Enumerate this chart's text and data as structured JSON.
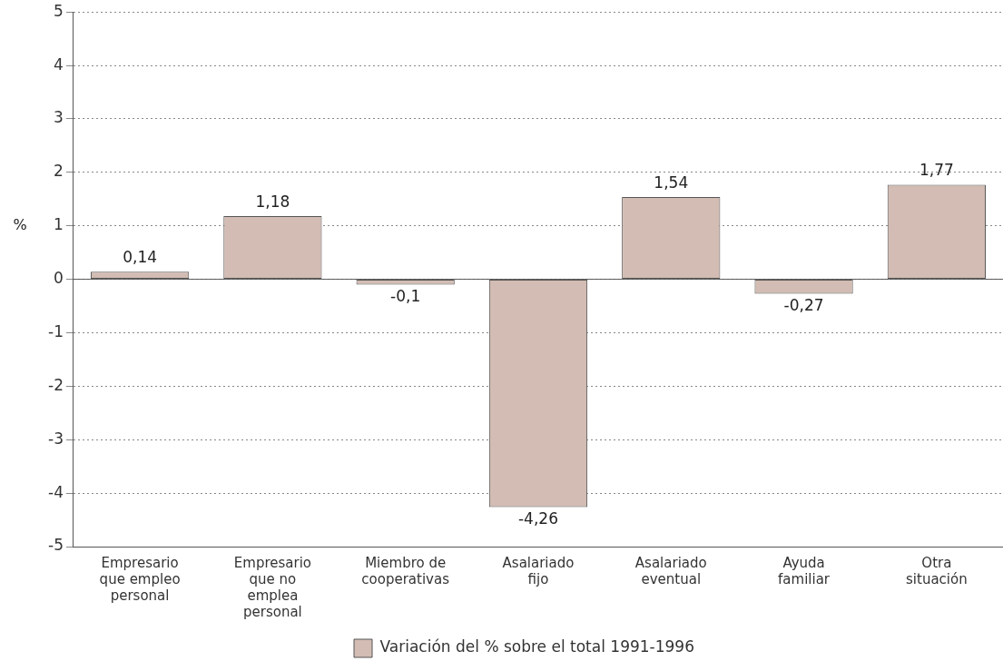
{
  "chart_data": {
    "type": "bar",
    "ylabel": "%",
    "categories": [
      "Empresario\nque empleo\npersonal",
      "Empresario\nque no\nemplea\npersonal",
      "Miembro de\ncooperativas",
      "Asalariado\nfijo",
      "Asalariado\neventual",
      "Ayuda\nfamiliar",
      "Otra\nsituación"
    ],
    "series": [
      {
        "name": "Variación del % sobre el total 1991-1996",
        "color": "#d2bcb3",
        "values": [
          0.14,
          1.18,
          -0.1,
          -4.26,
          1.54,
          -0.27,
          1.77
        ],
        "value_labels": [
          "0,14",
          "1,18",
          "-0,1",
          "-4,26",
          "1,54",
          "-0,27",
          "1,77"
        ]
      }
    ],
    "ylim": [
      -5,
      5
    ],
    "yticks": [
      -5,
      -4,
      -3,
      -2,
      -1,
      0,
      1,
      2,
      3,
      4,
      5
    ],
    "grid": "y",
    "legend": "bottom",
    "line_style": "dotted"
  }
}
